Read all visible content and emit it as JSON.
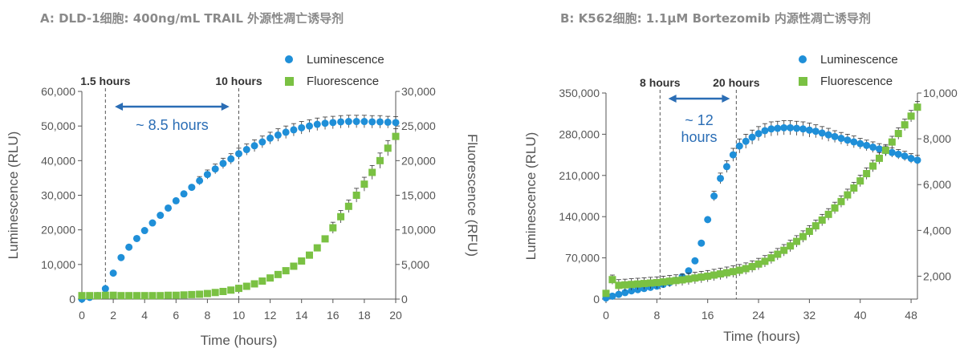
{
  "panels": {
    "a": {
      "title": "A: DLD-1细胞: 400ng/mL TRAIL 外源性凋亡诱导剂"
    },
    "b": {
      "title": "B: K562细胞: 1.1μM Bortezomib 内源性凋亡诱导剂"
    }
  },
  "colors": {
    "luminescence": "#1f8fd8",
    "fluorescence": "#7ac143",
    "arrow": "#2a6db5",
    "axis": "#555555"
  },
  "chart_data": [
    {
      "type": "scatter",
      "title": "A: DLD-1细胞: 400ng/mL TRAIL 外源性凋亡诱导剂",
      "xlabel": "Time (hours)",
      "ylabel": "Luminescence (RLU)",
      "y2label": "Fluorescence (RFU)",
      "xlim": [
        0,
        20
      ],
      "ylim": [
        0,
        60000
      ],
      "y2lim": [
        0,
        30000
      ],
      "x_ticks": [
        0,
        2,
        4,
        6,
        8,
        10,
        12,
        14,
        16,
        18,
        20
      ],
      "y_ticks": [
        0,
        10000,
        20000,
        30000,
        40000,
        50000,
        60000
      ],
      "y_tick_labels": [
        "0",
        "10,000",
        "20,000",
        "30,000",
        "40,000",
        "50,000",
        "60,000"
      ],
      "y2_ticks": [
        0,
        5000,
        10000,
        15000,
        20000,
        25000,
        30000
      ],
      "y2_tick_labels": [
        "0",
        "5,000",
        "10,000",
        "15,000",
        "20,000",
        "25,000",
        "30,000"
      ],
      "legend": {
        "position": "top-right",
        "entries": [
          "Luminescence",
          "Fluorescence"
        ]
      },
      "annotations": [
        {
          "x": 1.5,
          "text": "1.5 hours"
        },
        {
          "x": 10,
          "text": "10 hours"
        }
      ],
      "span": {
        "from": 2.1,
        "to": 9.4,
        "text": "~ 8.5 hours"
      },
      "series": [
        {
          "name": "Luminescence",
          "axis": "left",
          "marker": "circle",
          "x": [
            0,
            0.5,
            1,
            1.5,
            2,
            2.5,
            3,
            3.5,
            4,
            4.5,
            5,
            5.5,
            6,
            6.5,
            7,
            7.5,
            8,
            8.5,
            9,
            9.5,
            10,
            10.5,
            11,
            11.5,
            12,
            12.5,
            13,
            13.5,
            14,
            14.5,
            15,
            15.5,
            16,
            16.5,
            17,
            17.5,
            18,
            18.5,
            19,
            19.5,
            20
          ],
          "y": [
            0,
            500,
            1000,
            3000,
            7500,
            12000,
            15000,
            17500,
            19800,
            22000,
            24200,
            26300,
            28400,
            30400,
            32300,
            34200,
            36000,
            37600,
            39200,
            40500,
            42000,
            43200,
            44300,
            45400,
            46500,
            47400,
            48200,
            48900,
            49500,
            50000,
            50500,
            50800,
            51000,
            51200,
            51300,
            51300,
            51300,
            51200,
            51200,
            51100,
            51000
          ],
          "error": [
            0,
            0,
            0,
            0,
            0,
            0,
            0,
            0,
            0,
            0,
            0,
            0,
            0,
            0,
            0,
            1200,
            1300,
            1400,
            1500,
            1500,
            1600,
            1600,
            1700,
            1700,
            1700,
            1800,
            1800,
            1800,
            1800,
            1800,
            1800,
            1800,
            1800,
            1800,
            1800,
            1800,
            1800,
            1800,
            1800,
            1700,
            1700
          ]
        },
        {
          "name": "Fluorescence",
          "axis": "right",
          "marker": "square",
          "x": [
            0,
            0.5,
            1,
            1.5,
            2,
            2.5,
            3,
            3.5,
            4,
            4.5,
            5,
            5.5,
            6,
            6.5,
            7,
            7.5,
            8,
            8.5,
            9,
            9.5,
            10,
            10.5,
            11,
            11.5,
            12,
            12.5,
            13,
            13.5,
            14,
            14.5,
            15,
            15.5,
            16,
            16.5,
            17,
            17.5,
            18,
            18.5,
            19,
            19.5,
            20
          ],
          "y": [
            500,
            500,
            500,
            550,
            550,
            500,
            500,
            500,
            500,
            500,
            500,
            550,
            550,
            600,
            650,
            700,
            800,
            950,
            1100,
            1300,
            1550,
            1850,
            2200,
            2600,
            3050,
            3550,
            4100,
            4750,
            5500,
            6350,
            7400,
            8700,
            10300,
            11900,
            13400,
            15000,
            16600,
            18300,
            20000,
            21800,
            23500
          ],
          "error": [
            0,
            0,
            0,
            0,
            0,
            0,
            0,
            0,
            0,
            0,
            0,
            0,
            0,
            0,
            0,
            0,
            0,
            0,
            0,
            0,
            0,
            0,
            0,
            0,
            0,
            0,
            0,
            0,
            0,
            0,
            0,
            0,
            800,
            900,
            900,
            1000,
            1000,
            1000,
            1100,
            1100,
            1100
          ]
        }
      ]
    },
    {
      "type": "scatter",
      "title": "B: K562细胞: 1.1μM Bortezomib 内源性凋亡诱导剂",
      "xlabel": "Time (hours)",
      "ylabel": "Luminescence (RLU)",
      "y2label": "",
      "xlim": [
        0,
        49
      ],
      "ylim": [
        0,
        350000
      ],
      "y2lim": [
        1000,
        10000
      ],
      "x_ticks": [
        0,
        8,
        16,
        24,
        32,
        40,
        48
      ],
      "y_ticks": [
        0,
        70000,
        140000,
        210000,
        280000,
        350000
      ],
      "y_tick_labels": [
        "0",
        "70,000",
        "140,000",
        "210,000",
        "280,000",
        "350,000"
      ],
      "y2_ticks": [
        2000,
        4000,
        6000,
        8000,
        10000
      ],
      "y2_tick_labels": [
        "2,000",
        "4,000",
        "6,000",
        "8,000",
        "10,000"
      ],
      "legend": {
        "position": "top-right",
        "entries": [
          "Luminescence",
          "Fluorescence"
        ]
      },
      "annotations": [
        {
          "x": 8.5,
          "text": "8 hours"
        },
        {
          "x": 20.5,
          "text": "20 hours"
        }
      ],
      "span": {
        "from": 9.8,
        "to": 19.5,
        "text": "~ 12 hours"
      },
      "series": [
        {
          "name": "Luminescence",
          "axis": "left",
          "marker": "circle",
          "x": [
            0,
            1,
            2,
            3,
            4,
            5,
            6,
            7,
            8,
            9,
            10,
            11,
            12,
            13,
            14,
            15,
            16,
            17,
            18,
            19,
            20,
            21,
            22,
            23,
            24,
            25,
            26,
            27,
            28,
            29,
            30,
            31,
            32,
            33,
            34,
            35,
            36,
            37,
            38,
            39,
            40,
            41,
            42,
            43,
            44,
            45,
            46,
            47,
            48,
            49
          ],
          "y": [
            2000,
            5000,
            8000,
            11000,
            14000,
            16000,
            18000,
            20000,
            22000,
            25000,
            28000,
            32000,
            38000,
            48000,
            65000,
            95000,
            135000,
            175000,
            205000,
            225000,
            245000,
            260000,
            268000,
            275000,
            281000,
            286000,
            289000,
            290000,
            291000,
            291000,
            290000,
            289000,
            287000,
            285000,
            282000,
            279000,
            276000,
            273000,
            270000,
            267000,
            264000,
            261000,
            258000,
            255000,
            252000,
            249000,
            246000,
            243000,
            239000,
            236000
          ],
          "error": [
            0,
            0,
            0,
            0,
            0,
            0,
            0,
            0,
            0,
            0,
            0,
            0,
            0,
            0,
            0,
            0,
            0,
            8000,
            9000,
            10000,
            11000,
            12000,
            12000,
            12000,
            12000,
            12000,
            12000,
            12000,
            12000,
            12000,
            12000,
            12000,
            12000,
            11000,
            11000,
            11000,
            10000,
            10000,
            10000,
            10000,
            9000,
            9000,
            9000,
            9000,
            8000,
            8000,
            8000,
            8000,
            8000,
            8000
          ]
        },
        {
          "name": "Fluorescence",
          "axis": "right",
          "marker": "square",
          "x": [
            0,
            1,
            2,
            3,
            4,
            5,
            6,
            7,
            8,
            9,
            10,
            11,
            12,
            13,
            14,
            15,
            16,
            17,
            18,
            19,
            20,
            21,
            22,
            23,
            24,
            25,
            26,
            27,
            28,
            29,
            30,
            31,
            32,
            33,
            34,
            35,
            36,
            37,
            38,
            39,
            40,
            41,
            42,
            43,
            44,
            45,
            46,
            47,
            48,
            49
          ],
          "y": [
            1250,
            1850,
            1600,
            1620,
            1640,
            1660,
            1680,
            1700,
            1720,
            1750,
            1780,
            1810,
            1840,
            1880,
            1920,
            1960,
            2000,
            2050,
            2100,
            2150,
            2200,
            2260,
            2330,
            2420,
            2530,
            2650,
            2800,
            2960,
            3130,
            3320,
            3520,
            3730,
            3960,
            4200,
            4450,
            4700,
            4980,
            5260,
            5550,
            5850,
            6160,
            6480,
            6810,
            7150,
            7500,
            7860,
            8230,
            8610,
            8990,
            9380
          ],
          "error": [
            100,
            200,
            250,
            250,
            250,
            250,
            250,
            250,
            250,
            250,
            250,
            250,
            250,
            250,
            250,
            250,
            250,
            250,
            250,
            250,
            250,
            250,
            250,
            250,
            250,
            250,
            250,
            250,
            250,
            250,
            250,
            250,
            250,
            250,
            250,
            250,
            250,
            250,
            250,
            250,
            250,
            250,
            250,
            250,
            250,
            250,
            250,
            250,
            250,
            250
          ]
        }
      ]
    }
  ]
}
